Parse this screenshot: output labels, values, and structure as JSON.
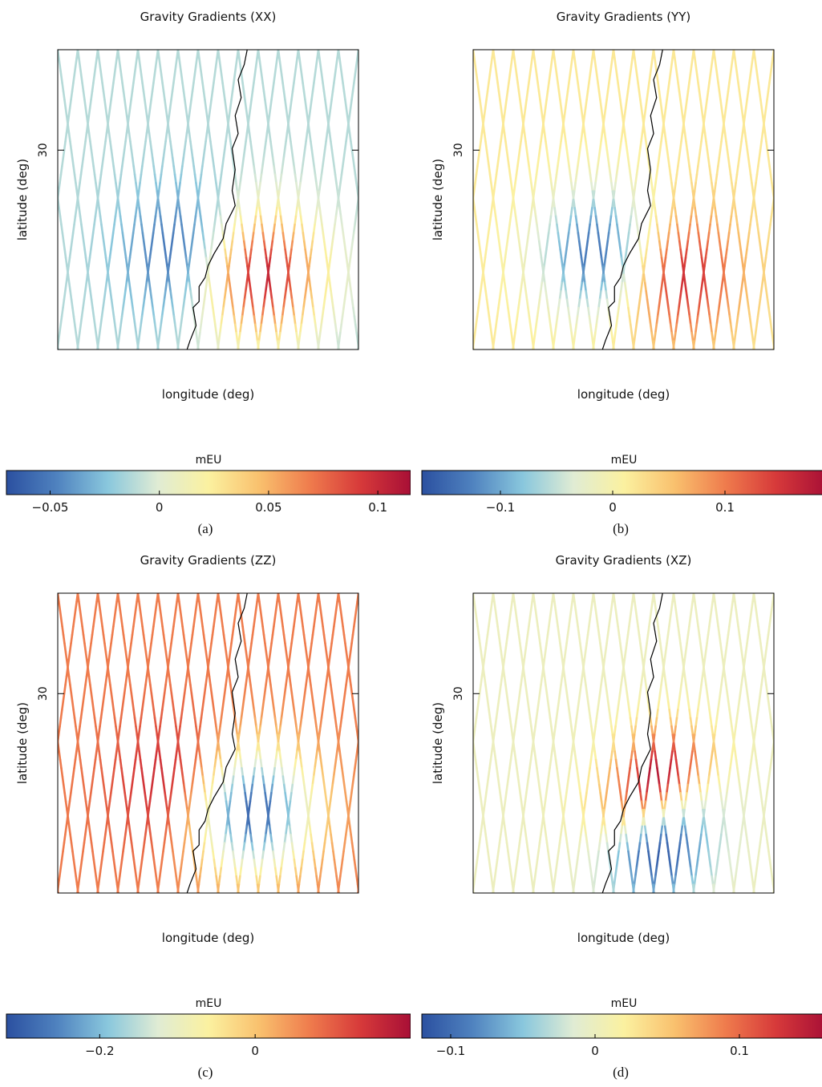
{
  "colors": {
    "colormap": [
      "#2b50a0",
      "#4f82bf",
      "#89c7dd",
      "#e0ecd4",
      "#fbf1a0",
      "#f9c16e",
      "#ef7c4d",
      "#d73a3a",
      "#a80f36"
    ],
    "coastline": "#000000",
    "frame": "#000000"
  },
  "chart_data": [
    {
      "type": "scatter",
      "panel_label": "(a)",
      "title": "Gravity Gradients (XX)",
      "xlabel": "longitude (deg)",
      "ylabel": "latitude (deg)",
      "ytick_label": "30",
      "colorbar": {
        "label": "mEU",
        "range": [
          -0.07,
          0.115
        ],
        "ticks": [
          -0.05,
          0,
          0.05,
          0.1
        ],
        "tick_labels": [
          "−0.05",
          "0",
          "0.05",
          "0.1"
        ]
      },
      "anomaly": {
        "positive": 0.115,
        "negative": -0.07,
        "positive_side": "east",
        "background": -0.012
      }
    },
    {
      "type": "scatter",
      "panel_label": "(b)",
      "title": "Gravity Gradients (YY)",
      "xlabel": "longitude (deg)",
      "ylabel": "latitude (deg)",
      "ytick_label": "30",
      "colorbar": {
        "label": "mEU",
        "range": [
          -0.17,
          0.19
        ],
        "ticks": [
          -0.1,
          0,
          0.1
        ],
        "tick_labels": [
          "−0.1",
          "0",
          "0.1"
        ]
      },
      "anomaly": {
        "positive": 0.19,
        "negative": -0.17,
        "positive_side": "east",
        "background": 0.018
      }
    },
    {
      "type": "scatter",
      "panel_label": "(c)",
      "title": "Gravity Gradients (ZZ)",
      "xlabel": "longitude (deg)",
      "ylabel": "latitude (deg)",
      "ytick_label": "30",
      "colorbar": {
        "label": "mEU",
        "range": [
          -0.32,
          0.2
        ],
        "ticks": [
          -0.2,
          0
        ],
        "tick_labels": [
          "−0.2",
          "0"
        ]
      },
      "anomaly": {
        "positive": 0.2,
        "negative": -0.32,
        "positive_side": "west",
        "background": 0.07
      }
    },
    {
      "type": "scatter",
      "panel_label": "(d)",
      "title": "Gravity Gradients (XZ)",
      "xlabel": "longitude (deg)",
      "ylabel": "latitude (deg)",
      "ytick_label": "30",
      "colorbar": {
        "label": "mEU",
        "range": [
          -0.12,
          0.16
        ],
        "ticks": [
          -0.1,
          0,
          0.1
        ],
        "tick_labels": [
          "−0.1",
          "0",
          "0.1"
        ]
      },
      "anomaly": {
        "positive": 0.16,
        "negative": -0.12,
        "positive_side": "dipole",
        "background": 0.0
      }
    }
  ]
}
